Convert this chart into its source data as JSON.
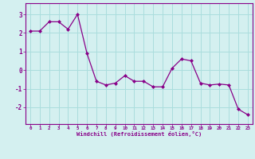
{
  "x": [
    0,
    1,
    2,
    3,
    4,
    5,
    6,
    7,
    8,
    9,
    10,
    11,
    12,
    13,
    14,
    15,
    16,
    17,
    18,
    19,
    20,
    21,
    22,
    23
  ],
  "y": [
    2.1,
    2.1,
    2.6,
    2.6,
    2.2,
    3.0,
    0.9,
    -0.6,
    -0.8,
    -0.7,
    -0.3,
    -0.6,
    -0.6,
    -0.9,
    -0.9,
    0.1,
    0.6,
    0.5,
    -0.7,
    -0.8,
    -0.75,
    -0.8,
    -2.1,
    -2.4
  ],
  "line_color": "#880088",
  "marker_color": "#880088",
  "bg_color": "#d4f0f0",
  "grid_color": "#aadddd",
  "xlabel": "Windchill (Refroidissement éolien,°C)",
  "xlabel_color": "#880088",
  "xtick_labels": [
    "0",
    "1",
    "2",
    "3",
    "4",
    "5",
    "6",
    "7",
    "8",
    "9",
    "10",
    "11",
    "12",
    "13",
    "14",
    "15",
    "16",
    "17",
    "18",
    "19",
    "20",
    "21",
    "22",
    "23"
  ],
  "ytick_labels": [
    "-2",
    "-1",
    "0",
    "1",
    "2",
    "3"
  ],
  "ytick_values": [
    -2,
    -1,
    0,
    1,
    2,
    3
  ],
  "ylim": [
    -2.9,
    3.6
  ],
  "xlim": [
    -0.5,
    23.5
  ]
}
